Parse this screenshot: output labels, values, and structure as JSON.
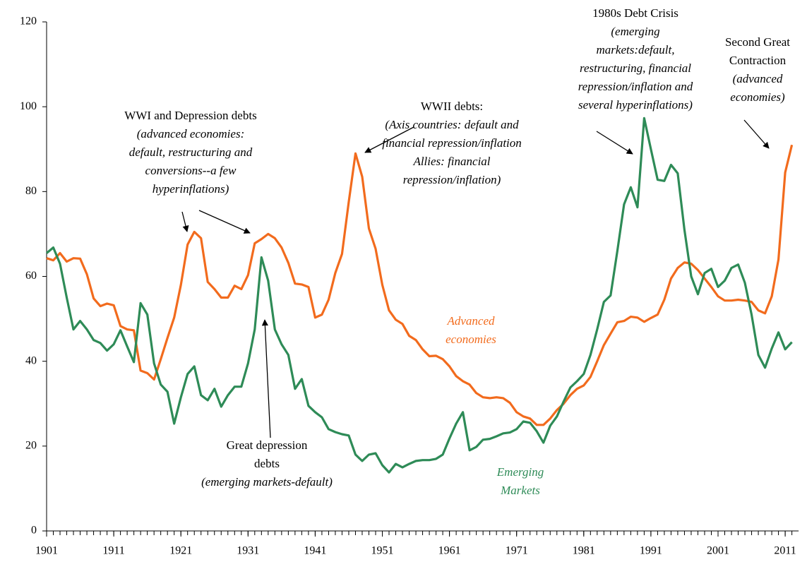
{
  "chart_data": {
    "type": "line",
    "x": [
      1901,
      1902,
      1903,
      1904,
      1905,
      1906,
      1907,
      1908,
      1909,
      1910,
      1911,
      1912,
      1913,
      1914,
      1915,
      1916,
      1917,
      1918,
      1919,
      1920,
      1921,
      1922,
      1923,
      1924,
      1925,
      1926,
      1927,
      1928,
      1929,
      1930,
      1931,
      1932,
      1933,
      1934,
      1935,
      1936,
      1937,
      1938,
      1939,
      1940,
      1941,
      1942,
      1943,
      1944,
      1945,
      1946,
      1947,
      1948,
      1949,
      1950,
      1951,
      1952,
      1953,
      1954,
      1955,
      1956,
      1957,
      1958,
      1959,
      1960,
      1961,
      1962,
      1963,
      1964,
      1965,
      1966,
      1967,
      1968,
      1969,
      1970,
      1971,
      1972,
      1973,
      1974,
      1975,
      1976,
      1977,
      1978,
      1979,
      1980,
      1981,
      1982,
      1983,
      1984,
      1985,
      1986,
      1987,
      1988,
      1989,
      1990,
      1991,
      1992,
      1993,
      1994,
      1995,
      1996,
      1997,
      1998,
      1999,
      2000,
      2001,
      2002,
      2003,
      2004,
      2005,
      2006,
      2007,
      2008,
      2009,
      2010,
      2011,
      2012
    ],
    "series": [
      {
        "name": "Advanced economies",
        "color": "#f26b1d",
        "values": [
          64.3,
          63.8,
          65.5,
          63.5,
          64.3,
          64.2,
          60.5,
          54.8,
          53,
          53.6,
          53.2,
          48.3,
          47.5,
          47.3,
          37.8,
          37.2,
          35.7,
          40.5,
          45.5,
          50.3,
          58,
          67.5,
          70.5,
          69,
          58.7,
          57,
          55,
          55,
          57.8,
          57,
          60.3,
          67.8,
          68.8,
          70,
          69,
          66.8,
          63.2,
          58.3,
          58.1,
          57.5,
          50.3,
          51,
          54.5,
          60.8,
          65.3,
          77.5,
          89,
          83.5,
          71.3,
          66.5,
          58,
          52,
          49.8,
          48.8,
          46,
          45,
          42.8,
          41.2,
          41.3,
          40.5,
          38.8,
          36.5,
          35.3,
          34.5,
          32.5,
          31.5,
          31.3,
          31.5,
          31.3,
          30.2,
          28,
          27,
          26.5,
          25,
          25,
          26.5,
          28.5,
          30,
          32,
          33.5,
          34.3,
          36.3,
          40,
          43.8,
          46.5,
          49.2,
          49.5,
          50.5,
          50.3,
          49.3,
          50.2,
          51,
          54.5,
          59.5,
          62,
          63.3,
          63,
          61.5,
          59.5,
          57.5,
          55.3,
          54.3,
          54.3,
          54.5,
          54.3,
          54,
          52,
          51.3,
          55.3,
          64,
          84.5,
          91
        ]
      },
      {
        "name": "Emerging Markets",
        "color": "#2e8b57",
        "values": [
          65.5,
          66.8,
          63,
          55,
          47.5,
          49.5,
          47.5,
          45,
          44.3,
          42.5,
          44,
          47.3,
          43.5,
          39.8,
          53.7,
          51,
          39.5,
          34.5,
          32.8,
          25.3,
          31.5,
          37,
          38.8,
          32,
          30.8,
          33.5,
          29.3,
          32,
          34,
          34,
          39.5,
          47.5,
          64.5,
          59,
          47.5,
          44,
          41.5,
          33.5,
          35.8,
          29.5,
          28,
          26.8,
          24,
          23.3,
          22.8,
          22.5,
          18,
          16.5,
          18,
          18.3,
          15.5,
          13.8,
          15.8,
          15,
          15.8,
          16.5,
          16.7,
          16.7,
          17,
          18,
          21.8,
          25.3,
          28,
          19,
          19.8,
          21.5,
          21.7,
          22.3,
          23,
          23.2,
          24,
          25.8,
          25.5,
          23.5,
          20.8,
          24.8,
          27,
          30.5,
          33.8,
          35.3,
          37,
          41.5,
          47.5,
          54,
          55.5,
          66,
          77,
          81,
          76.3,
          97.3,
          90,
          82.8,
          82.5,
          86.3,
          84.3,
          71,
          60,
          55.8,
          60.8,
          61.8,
          57.5,
          59,
          62,
          62.8,
          58.5,
          51,
          41.5,
          38.5,
          43,
          46.8,
          42.8,
          44.5
        ]
      }
    ],
    "xlim": [
      1901,
      2013
    ],
    "xticks": [
      1901,
      1911,
      1921,
      1931,
      1941,
      1951,
      1961,
      1971,
      1981,
      1991,
      2001,
      2011
    ],
    "ylim": [
      0,
      120
    ],
    "yticks": [
      0,
      20,
      40,
      60,
      80,
      100,
      120
    ],
    "annotations": [
      {
        "lines": [
          "WWI and Depression debts",
          "(advanced economies:",
          "default, restructuring and",
          "conversions--a few",
          "hyperinflations)"
        ]
      },
      {
        "lines": [
          "WWII debts:",
          "(Axis countries: default and",
          "financial repression/inflation",
          "Allies: financial",
          "repression/inflation)"
        ]
      },
      {
        "lines": [
          "1980s Debt Crisis",
          "(emerging",
          "markets:default,",
          "restructuring, financial",
          "repression/inflation and",
          "several hyperinflations)"
        ]
      },
      {
        "lines": [
          "Second Great",
          "Contraction",
          "(advanced",
          "economies)"
        ]
      },
      {
        "lines": [
          "Great depression",
          "debts",
          "(emerging markets-default)"
        ]
      }
    ]
  }
}
